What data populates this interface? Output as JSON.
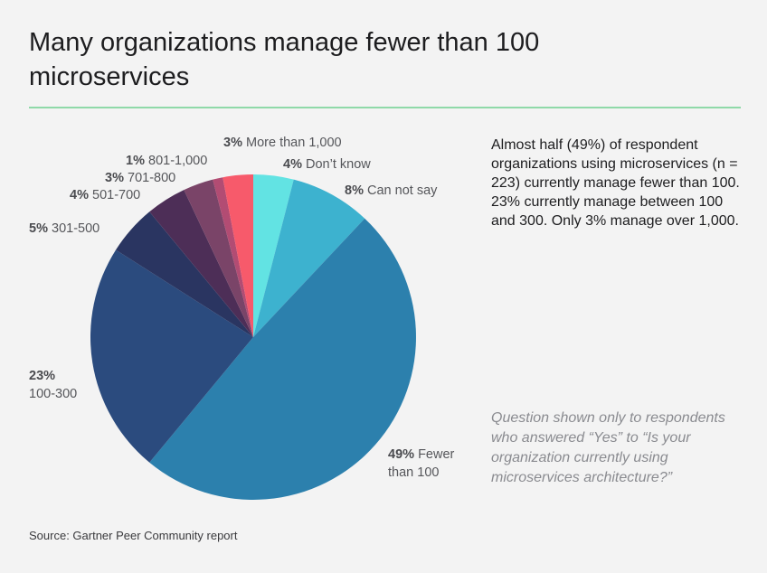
{
  "header": {
    "title": "Many organizations manage fewer than 100 microservices"
  },
  "chart_data": {
    "type": "pie",
    "title": "Many organizations manage fewer than 100 microservices",
    "start": "top",
    "direction": "clockwise",
    "slices": [
      {
        "label": "Don’t know",
        "value": 4,
        "pct": "4%",
        "color": "#62e3e3"
      },
      {
        "label": "Can not say",
        "value": 8,
        "pct": "8%",
        "color": "#3db2cf"
      },
      {
        "label": "Fewer than 100",
        "value": 49,
        "pct": "49%",
        "color": "#2c80ad"
      },
      {
        "label": "100-300",
        "value": 23,
        "pct": "23%",
        "color": "#2b4b7e"
      },
      {
        "label": "301-500",
        "value": 5,
        "pct": "5%",
        "color": "#2a3561"
      },
      {
        "label": "501-700",
        "value": 4,
        "pct": "4%",
        "color": "#4d2e57"
      },
      {
        "label": "701-800",
        "value": 3,
        "pct": "3%",
        "color": "#7a4468"
      },
      {
        "label": "801-1,000",
        "value": 1,
        "pct": "1%",
        "color": "#b24c73"
      },
      {
        "label": "More than 1,000",
        "value": 3,
        "pct": "3%",
        "color": "#f75a6b"
      }
    ],
    "labels": {
      "more_than_1000": {
        "pct": "3%",
        "text": "More than 1,000"
      },
      "dont_know": {
        "pct": "4%",
        "text": "Don’t know"
      },
      "can_not_say": {
        "pct": "8%",
        "text": "Can not say"
      },
      "r801": {
        "pct": "1%",
        "text": "801-1,000"
      },
      "r701": {
        "pct": "3%",
        "text": "701-800"
      },
      "r501": {
        "pct": "4%",
        "text": "501-700"
      },
      "r301": {
        "pct": "5%",
        "text": "301-500"
      },
      "r100": {
        "pct": "23%",
        "text": "100-300"
      },
      "fewer": {
        "pct": "49%",
        "text1": "Fewer",
        "text2": "than 100"
      }
    }
  },
  "description": "Almost half (49%) of respondent organizations using microservices (n = 223) currently manage fewer than 100. 23% currently manage between 100 and 300. Only 3% manage over 1,000.",
  "note": "Question shown only to respondents who answered “Yes” to “Is your organization currently using microservices architecture?”",
  "source": "Source: Gartner Peer Community report"
}
